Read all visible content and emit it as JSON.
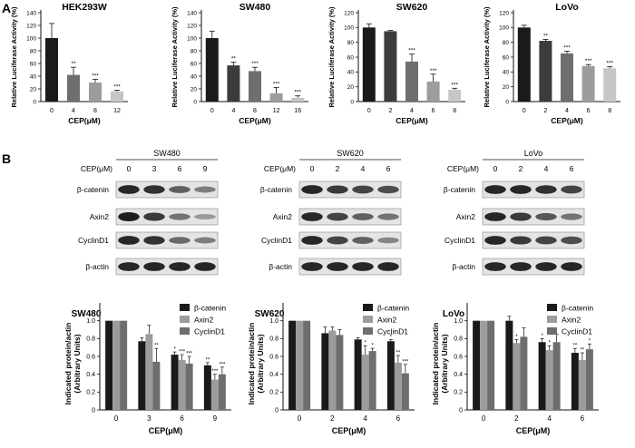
{
  "panels": {
    "a": "A",
    "b": "B"
  },
  "colors": {
    "black": "#1a1a1a",
    "dark": "#3c3c3c",
    "gray": "#6e6e6e",
    "mid": "#9c9c9c",
    "light": "#c6c6c6"
  },
  "luciferase": [
    {
      "title": "HEK293W",
      "ylabel": "Relative Luciferase Activity (%)",
      "xlabel": "CEP(μM)",
      "categories": [
        "0",
        "4",
        "8",
        "12"
      ],
      "values": [
        100,
        42,
        30,
        16
      ],
      "errors": [
        23,
        12,
        5,
        2
      ],
      "stars": [
        "",
        "**",
        "***",
        "***"
      ],
      "bar_colors": [
        "#1a1a1a",
        "#6e6e6e",
        "#9c9c9c",
        "#c6c6c6"
      ],
      "yticks": [
        "0",
        "20",
        "40",
        "60",
        "80",
        "100",
        "120",
        "140"
      ],
      "ylim": [
        0,
        140
      ]
    },
    {
      "title": "SW480",
      "ylabel": "Relative Luciferase Activity (%)",
      "xlabel": "CEP(μM)",
      "categories": [
        "0",
        "4",
        "8",
        "12",
        "16"
      ],
      "values": [
        100,
        57,
        48,
        13,
        6
      ],
      "errors": [
        11,
        5,
        6,
        9,
        3
      ],
      "stars": [
        "",
        "**",
        "***",
        "***",
        "***"
      ],
      "bar_colors": [
        "#1a1a1a",
        "#3c3c3c",
        "#6e6e6e",
        "#9c9c9c",
        "#c6c6c6"
      ],
      "yticks": [
        "0",
        "20",
        "40",
        "60",
        "80",
        "100",
        "120",
        "140"
      ],
      "ylim": [
        0,
        140
      ]
    },
    {
      "title": "SW620",
      "ylabel": "Relative Luciferase Activity (%)",
      "xlabel": "CEP(μM)",
      "categories": [
        "0",
        "2",
        "4",
        "6",
        "8"
      ],
      "values": [
        100,
        95,
        54,
        27,
        16
      ],
      "errors": [
        5,
        1,
        10,
        10,
        2
      ],
      "stars": [
        "",
        "",
        "***",
        "***",
        "***"
      ],
      "bar_colors": [
        "#1a1a1a",
        "#3c3c3c",
        "#6e6e6e",
        "#9c9c9c",
        "#c6c6c6"
      ],
      "yticks": [
        "0",
        "20",
        "40",
        "60",
        "80",
        "100",
        "120"
      ],
      "ylim": [
        0,
        120
      ]
    },
    {
      "title": "LoVo",
      "ylabel": "Relative Luciferase Activity (%)",
      "xlabel": "CEP(μM)",
      "categories": [
        "0",
        "2",
        "4",
        "6",
        "8"
      ],
      "values": [
        100,
        82,
        65,
        48,
        45
      ],
      "errors": [
        3,
        2,
        3,
        2,
        2
      ],
      "stars": [
        "",
        "**",
        "***",
        "***",
        "***"
      ],
      "bar_colors": [
        "#1a1a1a",
        "#3c3c3c",
        "#6e6e6e",
        "#9c9c9c",
        "#c6c6c6"
      ],
      "yticks": [
        "0",
        "20",
        "40",
        "60",
        "80",
        "100",
        "120"
      ],
      "ylim": [
        0,
        120
      ]
    }
  ],
  "blots": [
    {
      "cell": "SW480",
      "cep_label": "CEP(μM)",
      "doses": [
        "0",
        "3",
        "6",
        "9"
      ],
      "rows": [
        {
          "label": "β-catenin",
          "intensity": [
            0.9,
            0.85,
            0.6,
            0.45
          ]
        },
        {
          "label": "Axin2",
          "intensity": [
            0.95,
            0.8,
            0.5,
            0.3
          ]
        },
        {
          "label": "CyclinD1",
          "intensity": [
            0.9,
            0.85,
            0.55,
            0.45
          ]
        },
        {
          "label": "β-actin",
          "intensity": [
            0.9,
            0.9,
            0.9,
            0.9
          ]
        }
      ]
    },
    {
      "cell": "SW620",
      "cep_label": "CEP(μM)",
      "doses": [
        "0",
        "2",
        "4",
        "6"
      ],
      "rows": [
        {
          "label": "β-catenin",
          "intensity": [
            0.9,
            0.8,
            0.75,
            0.7
          ]
        },
        {
          "label": "Axin2",
          "intensity": [
            0.9,
            0.75,
            0.6,
            0.5
          ]
        },
        {
          "label": "CyclinD1",
          "intensity": [
            0.9,
            0.75,
            0.6,
            0.4
          ]
        },
        {
          "label": "β-actin",
          "intensity": [
            0.9,
            0.9,
            0.9,
            0.9
          ]
        }
      ]
    },
    {
      "cell": "LoVo",
      "cep_label": "CEP(μM)",
      "doses": [
        "0",
        "2",
        "4",
        "6"
      ],
      "rows": [
        {
          "label": "β-catenin",
          "intensity": [
            0.9,
            0.9,
            0.85,
            0.75
          ]
        },
        {
          "label": "Axin2",
          "intensity": [
            0.9,
            0.8,
            0.65,
            0.5
          ]
        },
        {
          "label": "CyclinD1",
          "intensity": [
            0.9,
            0.8,
            0.75,
            0.7
          ]
        },
        {
          "label": "β-actin",
          "intensity": [
            0.9,
            0.9,
            0.9,
            0.9
          ]
        }
      ]
    }
  ],
  "chart_data": [
    {
      "type": "bar",
      "title": "HEK293W",
      "xlabel": "CEP(μM)",
      "ylabel": "Relative Luciferase Activity (%)",
      "categories": [
        "0",
        "4",
        "8",
        "12"
      ],
      "values": [
        100,
        42,
        30,
        16
      ],
      "ylim": [
        0,
        140
      ]
    },
    {
      "type": "bar",
      "title": "SW480",
      "xlabel": "CEP(μM)",
      "ylabel": "Relative Luciferase Activity (%)",
      "categories": [
        "0",
        "4",
        "8",
        "12",
        "16"
      ],
      "values": [
        100,
        57,
        48,
        13,
        6
      ],
      "ylim": [
        0,
        140
      ]
    },
    {
      "type": "bar",
      "title": "SW620",
      "xlabel": "CEP(μM)",
      "ylabel": "Relative Luciferase Activity (%)",
      "categories": [
        "0",
        "2",
        "4",
        "6",
        "8"
      ],
      "values": [
        100,
        95,
        54,
        27,
        16
      ],
      "ylim": [
        0,
        120
      ]
    },
    {
      "type": "bar",
      "title": "LoVo",
      "xlabel": "CEP(μM)",
      "ylabel": "Relative Luciferase Activity (%)",
      "categories": [
        "0",
        "2",
        "4",
        "6",
        "8"
      ],
      "values": [
        100,
        82,
        65,
        48,
        45
      ],
      "ylim": [
        0,
        120
      ]
    },
    {
      "type": "bar",
      "title": "SW480",
      "xlabel": "CEP(μM)",
      "ylabel": "Indicated protein/actin (Arbitrary Units)",
      "categories": [
        "0",
        "3",
        "6",
        "9"
      ],
      "ylim": [
        0,
        1.2
      ],
      "legend": "top-right",
      "yticks": [
        "0",
        "0.2",
        "0.4",
        "0.6",
        "0.8",
        "1.0"
      ],
      "series": [
        {
          "name": "β-catenin",
          "color": "#1a1a1a",
          "values": [
            1.0,
            0.77,
            0.62,
            0.5
          ],
          "errors": [
            0,
            0.04,
            0.03,
            0.03
          ],
          "stars": [
            "",
            "",
            "*",
            "**"
          ]
        },
        {
          "name": "Axin2",
          "color": "#9c9c9c",
          "values": [
            1.0,
            0.85,
            0.56,
            0.34
          ],
          "errors": [
            0,
            0.1,
            0.06,
            0.06
          ],
          "stars": [
            "",
            "",
            "***",
            "***"
          ]
        },
        {
          "name": "CyclinD1",
          "color": "#6e6e6e",
          "values": [
            1.0,
            0.54,
            0.52,
            0.4
          ],
          "errors": [
            0,
            0.15,
            0.08,
            0.08
          ],
          "stars": [
            "",
            "**",
            "***",
            "***"
          ]
        }
      ]
    },
    {
      "type": "bar",
      "title": "SW620",
      "xlabel": "CEP(μM)",
      "ylabel": "Indicated protein/actin (Arbitrary Units)",
      "categories": [
        "0",
        "2",
        "4",
        "6"
      ],
      "ylim": [
        0,
        1.2
      ],
      "legend": "top-right",
      "yticks": [
        "0",
        "0.2",
        "0.4",
        "0.6",
        "0.8",
        "1.0"
      ],
      "series": [
        {
          "name": "β-catenin",
          "color": "#1a1a1a",
          "values": [
            1.0,
            0.86,
            0.79,
            0.77
          ],
          "errors": [
            0,
            0.07,
            0.02,
            0.02
          ],
          "stars": [
            "",
            "",
            "",
            "*"
          ]
        },
        {
          "name": "Axin2",
          "color": "#9c9c9c",
          "values": [
            1.0,
            0.89,
            0.62,
            0.53
          ],
          "errors": [
            0,
            0.04,
            0.1,
            0.08
          ],
          "stars": [
            "",
            "",
            "*",
            "**"
          ]
        },
        {
          "name": "CyclinD1",
          "color": "#6e6e6e",
          "values": [
            1.0,
            0.84,
            0.66,
            0.41
          ],
          "errors": [
            0,
            0.06,
            0.03,
            0.1
          ],
          "stars": [
            "",
            "",
            "*",
            "***"
          ]
        }
      ]
    },
    {
      "type": "bar",
      "title": "LoVo",
      "xlabel": "CEP(μM)",
      "ylabel": "Indicated protein/actin (Arbitrary Units)",
      "categories": [
        "0",
        "2",
        "4",
        "6"
      ],
      "ylim": [
        0,
        1.2
      ],
      "legend": "top-right",
      "yticks": [
        "0",
        "0.2",
        "0.4",
        "0.6",
        "0.8",
        "1.0"
      ],
      "series": [
        {
          "name": "β-catenin",
          "color": "#1a1a1a",
          "values": [
            1.0,
            1.0,
            0.76,
            0.64
          ],
          "errors": [
            0,
            0.05,
            0.04,
            0.05
          ],
          "stars": [
            "",
            "",
            "*",
            "**"
          ]
        },
        {
          "name": "Axin2",
          "color": "#9c9c9c",
          "values": [
            1.0,
            0.75,
            0.67,
            0.56
          ],
          "errors": [
            0,
            0.04,
            0.05,
            0.08
          ],
          "stars": [
            "",
            "*",
            "*",
            "**"
          ]
        },
        {
          "name": "CyclinD1",
          "color": "#6e6e6e",
          "values": [
            1.0,
            0.82,
            0.76,
            0.68
          ],
          "errors": [
            0,
            0.1,
            0.09,
            0.06
          ],
          "stars": [
            "",
            "",
            "",
            "*"
          ]
        }
      ]
    }
  ]
}
